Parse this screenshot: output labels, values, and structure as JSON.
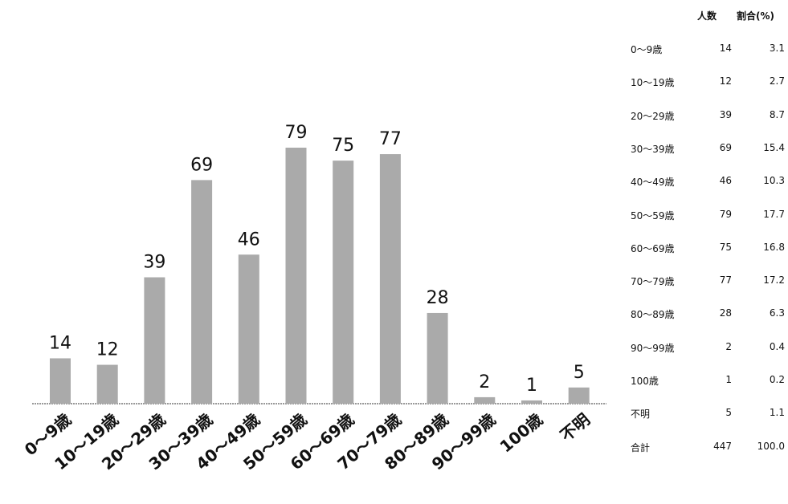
{
  "chart_data": {
    "type": "bar",
    "categories": [
      "0〜9歳",
      "10〜19歳",
      "20〜29歳",
      "30〜39歳",
      "40〜49歳",
      "50〜59歳",
      "60〜69歳",
      "70〜79歳",
      "80〜89歳",
      "90〜99歳",
      "100歳",
      "不明"
    ],
    "values": [
      14,
      12,
      39,
      69,
      46,
      79,
      75,
      77,
      28,
      2,
      1,
      5
    ],
    "ylim": [
      0,
      79
    ],
    "grid": false,
    "bar_color": "#aaaaaa"
  },
  "table": {
    "headers": {
      "count": "人数",
      "percent": "割合(%)"
    },
    "rows": [
      {
        "label": "0〜9歳",
        "count": "14",
        "percent": "3.1"
      },
      {
        "label": "10〜19歳",
        "count": "12",
        "percent": "2.7"
      },
      {
        "label": "20〜29歳",
        "count": "39",
        "percent": "8.7"
      },
      {
        "label": "30〜39歳",
        "count": "69",
        "percent": "15.4"
      },
      {
        "label": "40〜49歳",
        "count": "46",
        "percent": "10.3"
      },
      {
        "label": "50〜59歳",
        "count": "79",
        "percent": "17.7"
      },
      {
        "label": "60〜69歳",
        "count": "75",
        "percent": "16.8"
      },
      {
        "label": "70〜79歳",
        "count": "77",
        "percent": "17.2"
      },
      {
        "label": "80〜89歳",
        "count": "28",
        "percent": "6.3"
      },
      {
        "label": "90〜99歳",
        "count": "2",
        "percent": "0.4"
      },
      {
        "label": "100歳",
        "count": "1",
        "percent": "0.2"
      },
      {
        "label": "不明",
        "count": "5",
        "percent": "1.1"
      },
      {
        "label": "合計",
        "count": "447",
        "percent": "100.0"
      }
    ]
  }
}
